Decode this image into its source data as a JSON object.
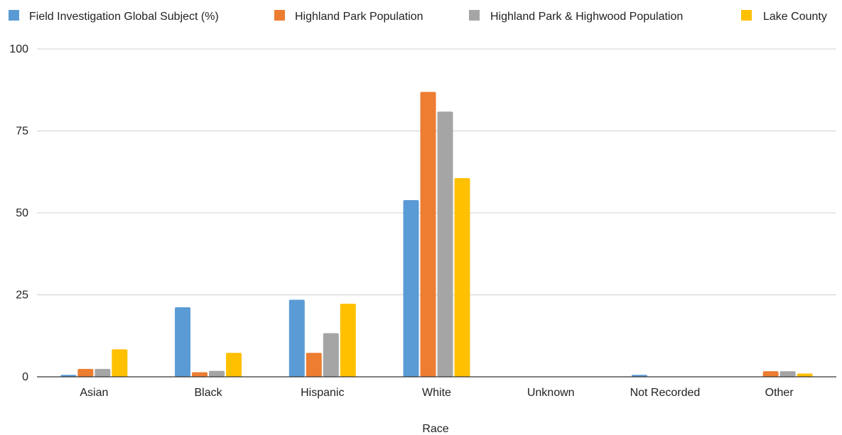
{
  "chart_data": {
    "type": "bar",
    "title": "",
    "xlabel": "Race",
    "ylabel": "",
    "ylim": [
      0,
      100
    ],
    "yticks": [
      0,
      25,
      50,
      75,
      100
    ],
    "grid": true,
    "legend_position": "top",
    "categories": [
      "Asian",
      "Black",
      "Hispanic",
      "White",
      "Unknown",
      "Not Recorded",
      "Other"
    ],
    "series": [
      {
        "name": "Field Investigation Global Subject (%)",
        "color": "#5b9bd5",
        "values": [
          0.6,
          21.2,
          23.5,
          53.9,
          0.0,
          0.6,
          0.0
        ]
      },
      {
        "name": "Highland Park Population",
        "color": "#ed7d31",
        "values": [
          2.4,
          1.4,
          7.3,
          86.9,
          0.0,
          0.0,
          1.7
        ]
      },
      {
        "name": "Highland Park & Highwood Population",
        "color": "#a5a5a5",
        "values": [
          2.4,
          1.8,
          13.3,
          80.9,
          0.0,
          0.0,
          1.7
        ]
      },
      {
        "name": "Lake County",
        "color": "#ffc000",
        "values": [
          8.4,
          7.3,
          22.3,
          60.6,
          0.0,
          0.0,
          1.0
        ]
      }
    ]
  }
}
